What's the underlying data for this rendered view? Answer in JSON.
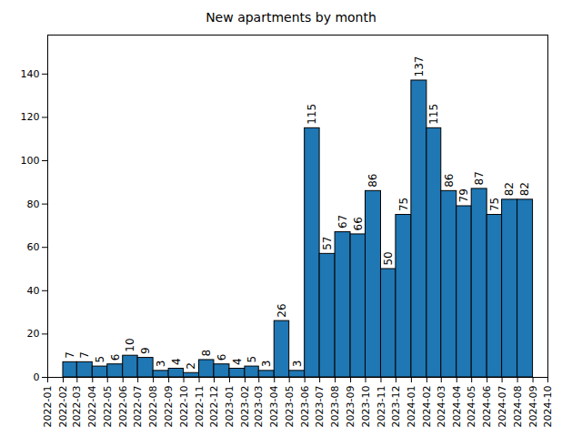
{
  "chart_data": {
    "type": "histogram",
    "title": "New apartments by month",
    "bins": [
      "2022-02",
      "2022-03",
      "2022-04",
      "2022-05",
      "2022-06",
      "2022-07",
      "2022-08",
      "2022-09",
      "2022-10",
      "2022-11",
      "2022-12",
      "2023-01",
      "2023-02",
      "2023-03",
      "2023-04",
      "2023-05",
      "2023-06",
      "2023-07",
      "2023-08",
      "2023-09",
      "2023-10",
      "2023-11",
      "2023-12",
      "2024-01",
      "2024-02",
      "2024-03",
      "2024-04",
      "2024-05",
      "2024-06",
      "2024-07",
      "2024-08",
      "2024-09"
    ],
    "values": [
      7,
      7,
      5,
      6,
      10,
      9,
      3,
      4,
      2,
      8,
      6,
      4,
      5,
      3,
      26,
      3,
      115,
      57,
      67,
      66,
      86,
      50,
      75,
      137,
      115,
      86,
      79,
      87,
      75,
      82,
      82
    ],
    "color": "#1f77b4",
    "xlim": [
      "2022-01",
      "2024-10"
    ],
    "xticks": [
      "2022-01",
      "2022-02",
      "2022-03",
      "2022-04",
      "2022-05",
      "2022-06",
      "2022-07",
      "2022-08",
      "2022-09",
      "2022-10",
      "2022-11",
      "2022-12",
      "2023-01",
      "2023-02",
      "2023-03",
      "2023-04",
      "2023-05",
      "2023-06",
      "2023-07",
      "2023-08",
      "2023-09",
      "2023-10",
      "2023-11",
      "2023-12",
      "2024-01",
      "2024-02",
      "2024-03",
      "2024-04",
      "2024-05",
      "2024-06",
      "2024-07",
      "2024-08",
      "2024-09",
      "2024-10"
    ],
    "ylim": [
      0,
      158
    ],
    "yticks": [
      0,
      20,
      40,
      60,
      80,
      100,
      120,
      140
    ],
    "grid": false,
    "data_labels": true
  }
}
